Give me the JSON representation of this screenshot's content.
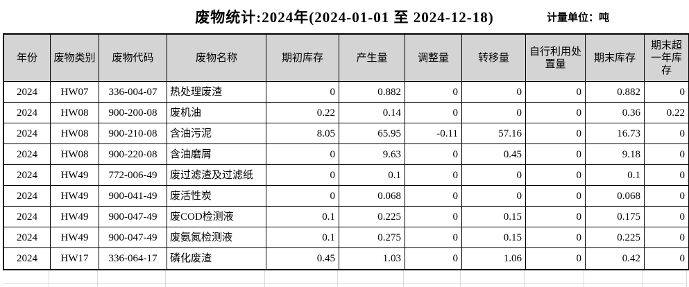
{
  "header": {
    "title": "废物统计:2024年(2024-01-01 至 2024-12-18)",
    "unit_label": "计量单位：吨"
  },
  "table": {
    "headers": [
      "年份",
      "废物类别",
      "废物代码",
      "废物名称",
      "期初库存",
      "产生量",
      "调整量",
      "转移量",
      "自行利用处置量",
      "期末库存",
      "期末超一年库存"
    ],
    "rows": [
      [
        "2024",
        "HW07",
        "336-004-07",
        "热处理废渣",
        "0",
        "0.882",
        "0",
        "0",
        "0",
        "0.882",
        "0"
      ],
      [
        "2024",
        "HW08",
        "900-200-08",
        "废机油",
        "0.22",
        "0.14",
        "0",
        "0",
        "0",
        "0.36",
        "0.22"
      ],
      [
        "2024",
        "HW08",
        "900-210-08",
        "含油污泥",
        "8.05",
        "65.95",
        "-0.11",
        "57.16",
        "0",
        "16.73",
        "0"
      ],
      [
        "2024",
        "HW08",
        "900-220-08",
        "含油磨屑",
        "0",
        "9.63",
        "0",
        "0.45",
        "0",
        "9.18",
        "0"
      ],
      [
        "2024",
        "HW49",
        "772-006-49",
        "废过滤渣及过滤纸",
        "0",
        "0.1",
        "0",
        "0",
        "0",
        "0.1",
        "0"
      ],
      [
        "2024",
        "HW49",
        "900-041-49",
        "废活性炭",
        "0",
        "0.068",
        "0",
        "0",
        "0",
        "0.068",
        "0"
      ],
      [
        "2024",
        "HW49",
        "900-047-49",
        "废COD检测液",
        "0.1",
        "0.225",
        "0",
        "0.15",
        "0",
        "0.175",
        "0"
      ],
      [
        "2024",
        "HW49",
        "900-047-49",
        "废氨氮检测液",
        "0.1",
        "0.275",
        "0",
        "0.15",
        "0",
        "0.225",
        "0"
      ],
      [
        "2024",
        "HW17",
        "336-064-17",
        "磷化废渣",
        "0.45",
        "1.03",
        "0",
        "1.06",
        "0",
        "0.42",
        "0"
      ]
    ]
  },
  "colors": {
    "header_bg": "#d4d4d4",
    "table_border": "#000000",
    "faint_grid": "#d9d9d9",
    "text": "#000000",
    "background": "#ffffff"
  }
}
